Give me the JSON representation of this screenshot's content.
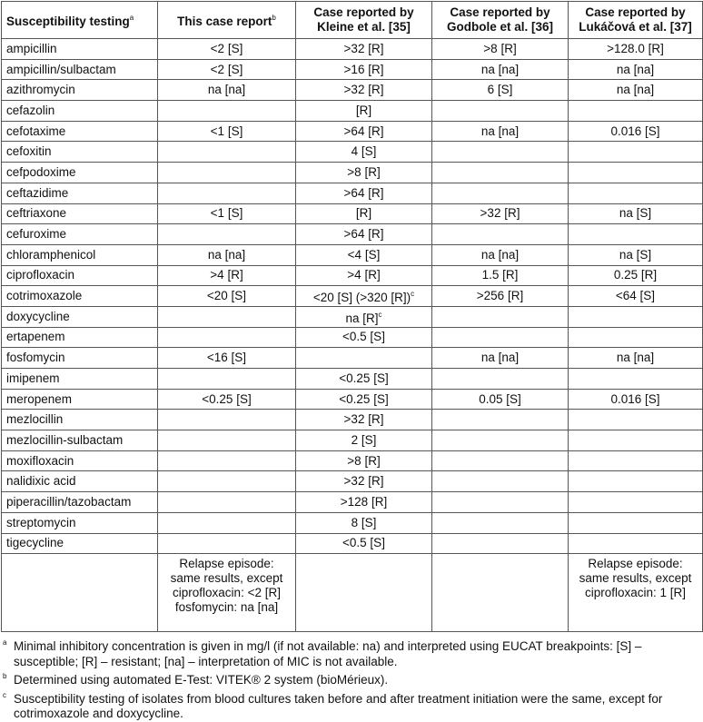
{
  "headers": [
    {
      "text": "Susceptibility testing",
      "sup": "a"
    },
    {
      "text": "This case report",
      "sup": "b"
    },
    {
      "text": "Case reported by Kleine et al. [35]",
      "sup": ""
    },
    {
      "text": "Case reported by Godbole et al. [36]",
      "sup": ""
    },
    {
      "text": "Case reported by Lukáčová et al. [37]",
      "sup": ""
    }
  ],
  "rows": [
    [
      "ampicillin",
      "<2 [S]",
      ">32 [R]",
      ">8 [R]",
      ">128.0 [R]"
    ],
    [
      "ampicillin/sulbactam",
      "<2 [S]",
      ">16 [R]",
      "na [na]",
      "na [na]"
    ],
    [
      "azithromycin",
      "na [na]",
      ">32 [R]",
      "6 [S]",
      "na [na]"
    ],
    [
      "cefazolin",
      "",
      "[R]",
      "",
      ""
    ],
    [
      "cefotaxime",
      "<1 [S]",
      ">64 [R]",
      "na [na]",
      "0.016 [S]"
    ],
    [
      "cefoxitin",
      "",
      "4 [S]",
      "",
      ""
    ],
    [
      "cefpodoxime",
      "",
      ">8 [R]",
      "",
      ""
    ],
    [
      "ceftazidime",
      "",
      ">64 [R]",
      "",
      ""
    ],
    [
      "ceftriaxone",
      "<1 [S]",
      "[R]",
      ">32 [R]",
      "na [S]"
    ],
    [
      "cefuroxime",
      "",
      ">64 [R]",
      "",
      ""
    ],
    [
      "chloramphenicol",
      "na [na]",
      "<4 [S]",
      "na [na]",
      "na [S]"
    ],
    [
      "ciprofloxacin",
      ">4 [R]",
      ">4 [R]",
      "1.5 [R]",
      "0.25 [R]"
    ],
    [
      "cotrimoxazole",
      "<20 [S]",
      "<20 [S] (>320 [R])|c",
      ">256 [R]",
      "<64 [S]"
    ],
    [
      "doxycycline",
      "",
      "na [R]|c",
      "",
      ""
    ],
    [
      "ertapenem",
      "",
      "<0.5 [S]",
      "",
      ""
    ],
    [
      "fosfomycin",
      "<16 [S]",
      "",
      "na [na]",
      "na [na]"
    ],
    [
      "imipenem",
      "",
      "<0.25 [S]",
      "",
      ""
    ],
    [
      "meropenem",
      "<0.25 [S]",
      "<0.25 [S]",
      "0.05 [S]",
      "0.016 [S]"
    ],
    [
      "mezlocillin",
      "",
      ">32 [R]",
      "",
      ""
    ],
    [
      "mezlocillin-sulbactam",
      "",
      "2 [S]",
      "",
      ""
    ],
    [
      "moxifloxacin",
      "",
      ">8 [R]",
      "",
      ""
    ],
    [
      "nalidixic acid",
      "",
      ">32 [R]",
      "",
      ""
    ],
    [
      "piperacillin/tazobactam",
      "",
      ">128 [R]",
      "",
      ""
    ],
    [
      "streptomycin",
      "",
      "8 [S]",
      "",
      ""
    ],
    [
      "tigecycline",
      "",
      "<0.5 [S]",
      "",
      ""
    ]
  ],
  "relapse": [
    "",
    "Relapse episode: same results, except ciprofloxacin: <2 [R] fosfomycin: na [na]",
    "",
    "",
    "Relapse episode: same results, except ciprofloxacin: 1 [R]"
  ],
  "footnotes": [
    {
      "mark": "a",
      "text": "Minimal inhibitory concentration is given in mg/l (if not available: na) and interpreted using EUCAT breakpoints: [S] – susceptible; [R] – resistant; [na] – interpretation of MIC is not available."
    },
    {
      "mark": "b",
      "text": "Determined using automated E-Test: VITEK® 2 system (bioMérieux)."
    },
    {
      "mark": "c",
      "text": "Susceptibility testing of isolates from blood cultures taken before and after treatment initiation were the same, except for cotrimoxazole and doxycycline."
    }
  ]
}
